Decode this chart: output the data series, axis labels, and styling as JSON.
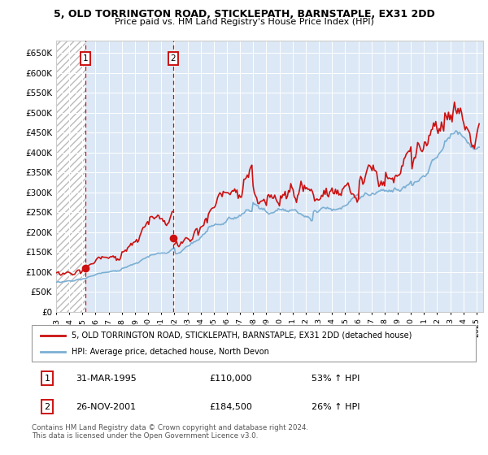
{
  "title": "5, OLD TORRINGTON ROAD, STICKLEPATH, BARNSTAPLE, EX31 2DD",
  "subtitle": "Price paid vs. HM Land Registry's House Price Index (HPI)",
  "ylabel_ticks": [
    "£0",
    "£50K",
    "£100K",
    "£150K",
    "£200K",
    "£250K",
    "£300K",
    "£350K",
    "£400K",
    "£450K",
    "£500K",
    "£550K",
    "£600K",
    "£650K"
  ],
  "ytick_values": [
    0,
    50000,
    100000,
    150000,
    200000,
    250000,
    300000,
    350000,
    400000,
    450000,
    500000,
    550000,
    600000,
    650000
  ],
  "ylim": [
    0,
    680000
  ],
  "xlim_start": 1993.0,
  "xlim_end": 2025.5,
  "legend_line1": "5, OLD TORRINGTON ROAD, STICKLEPATH, BARNSTAPLE, EX31 2DD (detached house)",
  "legend_line2": "HPI: Average price, detached house, North Devon",
  "transaction1_date": "31-MAR-1995",
  "transaction1_price": "£110,000",
  "transaction1_hpi": "53% ↑ HPI",
  "transaction1_x": 1995.25,
  "transaction1_y": 110000,
  "transaction2_date": "26-NOV-2001",
  "transaction2_price": "£184,500",
  "transaction2_hpi": "26% ↑ HPI",
  "transaction2_x": 2001.917,
  "transaction2_y": 184500,
  "footer": "Contains HM Land Registry data © Crown copyright and database right 2024.\nThis data is licensed under the Open Government Licence v3.0.",
  "hpi_color": "#7bafd4",
  "price_color": "#cc1111",
  "background_plot": "#dce8f5",
  "grid_color": "#ffffff"
}
